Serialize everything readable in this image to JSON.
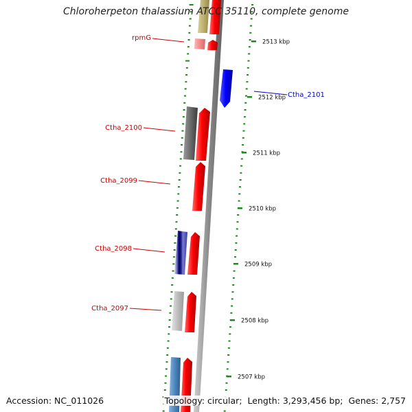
{
  "title": "Chloroherpeton thalassium ATCC 35110, complete genome",
  "accession": {
    "label": "Accession:",
    "value": "NC_011026"
  },
  "stats": {
    "topology_label": "Topology:",
    "topology_value": "circular;",
    "length_label": "Length:",
    "length_value": "3,293,456 bp;",
    "genes_label": "Genes:",
    "genes_value": "2,757"
  },
  "colors": {
    "forward_gene": "#ff0000",
    "reverse_gene": "#0000ff",
    "label_forward": "#cc0000",
    "label_reverse": "#0000cc",
    "tick_minor": "#1a8a1a",
    "tick_label": "#111111",
    "backbone": "#8a8a8a",
    "background": "#ffffff"
  },
  "scale_ticks": [
    {
      "label": "2513 kbp",
      "kbp": 2513
    },
    {
      "label": "2512 kbp",
      "kbp": 2512
    },
    {
      "label": "2511 kbp",
      "kbp": 2511
    },
    {
      "label": "2510 kbp",
      "kbp": 2510
    },
    {
      "label": "2509 kbp",
      "kbp": 2509
    },
    {
      "label": "2508 kbp",
      "kbp": 2508
    },
    {
      "label": "2507 kbp",
      "kbp": 2507
    }
  ],
  "gene_labels": [
    {
      "name": "rpmG",
      "strand": "forward"
    },
    {
      "name": "Ctha_2101",
      "strand": "reverse"
    },
    {
      "name": "Ctha_2100",
      "strand": "forward"
    },
    {
      "name": "Ctha_2099",
      "strand": "forward"
    },
    {
      "name": "Ctha_2098",
      "strand": "forward"
    },
    {
      "name": "Ctha_2097",
      "strand": "forward"
    }
  ]
}
